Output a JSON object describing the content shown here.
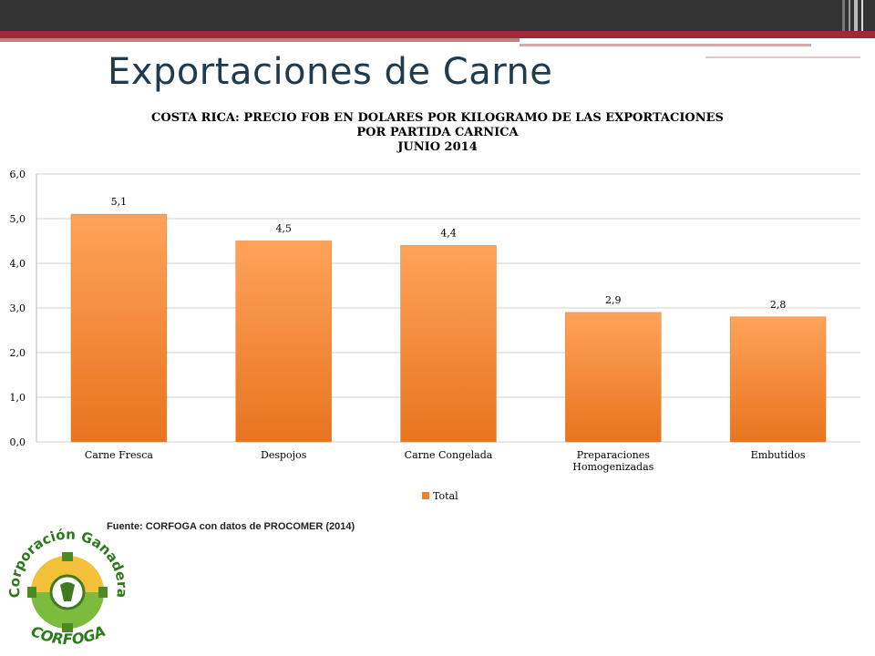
{
  "slide": {
    "title": "Exportaciones de Carne",
    "source_note": "Fuente: CORFOGA  con datos de PROCOMER (2014)"
  },
  "logo": {
    "text": "Corporación Ganadera",
    "acronym": "CORFOGA"
  },
  "colors": {
    "bar": "#f0822a",
    "bar_light": "#ffa35a",
    "gridline": "#d0d0d0",
    "title_color": "#1f3b4d",
    "accent_red": "#9e2a36"
  },
  "chart_data": {
    "type": "bar",
    "title_lines": [
      "COSTA RICA: PRECIO FOB EN DOLARES POR KILOGRAMO DE LAS EXPORTACIONES",
      "POR PARTIDA CARNICA",
      "JUNIO 2014"
    ],
    "categories": [
      "Carne Fresca",
      "Despojos",
      "Carne Congelada",
      "Preparaciones Homogenizadas",
      "Embutidos"
    ],
    "series": [
      {
        "name": "Total",
        "values": [
          5.1,
          4.5,
          4.4,
          2.9,
          2.8
        ]
      }
    ],
    "data_labels": [
      "5,1",
      "4,5",
      "4,4",
      "2,9",
      "2,8"
    ],
    "y_ticks": [
      "0,0",
      "1,0",
      "2,0",
      "3,0",
      "4,0",
      "5,0",
      "6,0"
    ],
    "ylim": [
      0,
      6
    ],
    "grid": true,
    "legend_position": "bottom"
  }
}
